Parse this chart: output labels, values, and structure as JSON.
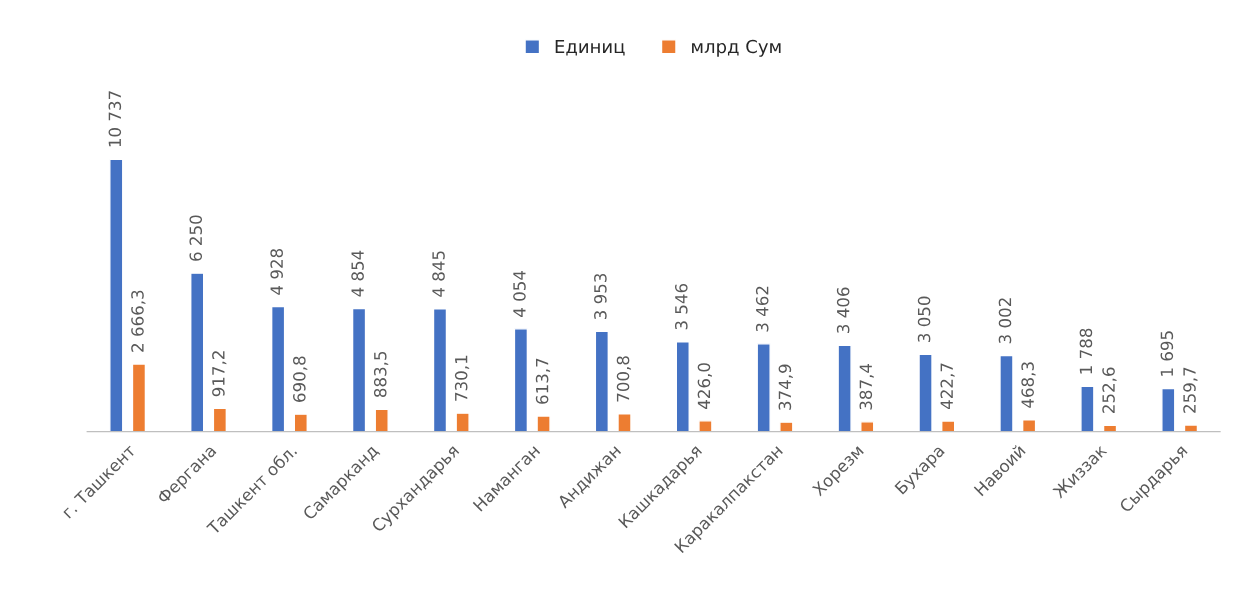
{
  "chart_data": {
    "type": "bar",
    "categories": [
      "г. Ташкент",
      "Фергана",
      "Ташкент обл.",
      "Самарканд",
      "Сурхандарья",
      "Наманган",
      "Андижан",
      "Кашкадарья",
      "Каракалпакстан",
      "Хорезм",
      "Бухара",
      "Навоий",
      "Жиззак",
      "Сырдарья"
    ],
    "series": [
      {
        "name": "Единиц",
        "color": "#4472c4",
        "values": [
          10737,
          6250,
          4928,
          4854,
          4845,
          4054,
          3953,
          3546,
          3462,
          3406,
          3050,
          3002,
          1788,
          1695
        ],
        "value_labels": [
          "10 737",
          "6 250",
          "4 928",
          "4 854",
          "4 845",
          "4 054",
          "3 953",
          "3 546",
          "3 462",
          "3 406",
          "3 050",
          "3 002",
          "1 788",
          "1 695"
        ]
      },
      {
        "name": "млрд Сум",
        "color": "#ed7d31",
        "values": [
          2666.3,
          917.2,
          690.8,
          883.5,
          730.1,
          613.7,
          700.8,
          426.0,
          374.9,
          387.4,
          422.7,
          468.3,
          252.6,
          259.7
        ],
        "value_labels": [
          "2 666,3",
          "917,2",
          "690,8",
          "883,5",
          "730,1",
          "613,7",
          "700,8",
          "426,0",
          "374,9",
          "387,4",
          "422,7",
          "468,3",
          "252,6",
          "259,7"
        ]
      }
    ],
    "legend": "top",
    "grid": false
  }
}
